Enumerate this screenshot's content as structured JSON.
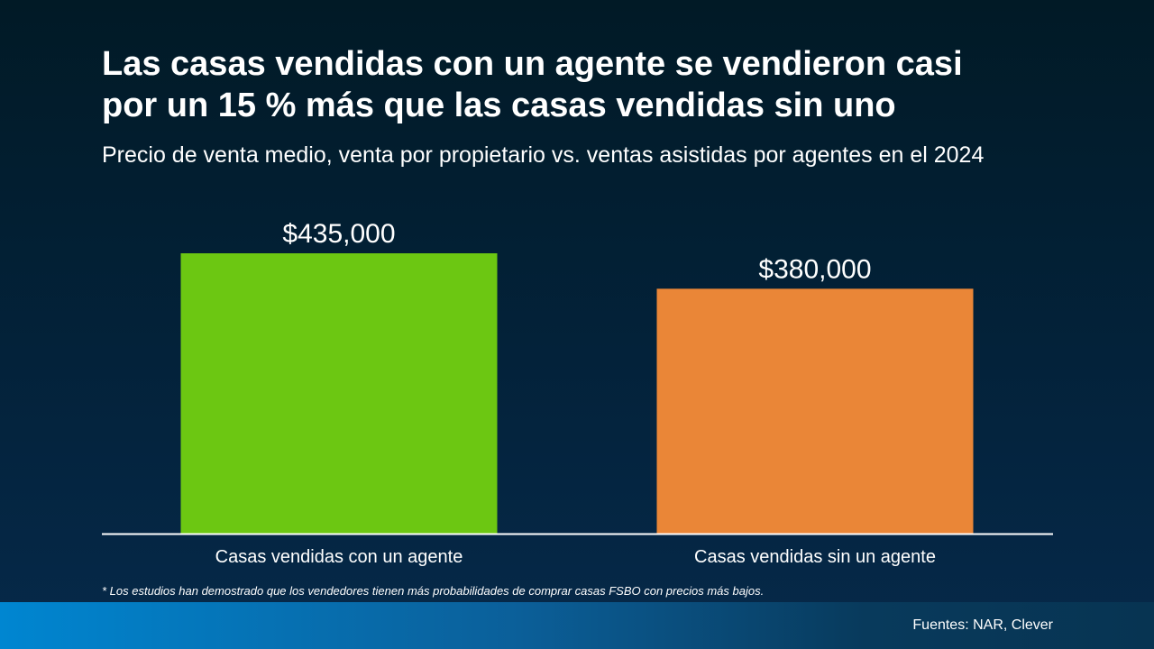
{
  "title_line1": "Las casas vendidas con un agente se vendieron casi",
  "title_line2": "por un 15 % más que las casas vendidas sin uno",
  "subtitle": "Precio de venta medio, venta por propietario vs. ventas asistidas por agentes en el 2024",
  "footnote": "* Los estudios han demostrado que los vendedores tienen más probabilidades de comprar casas FSBO con precios más bajos.",
  "sources": "Fuentes: NAR, Clever",
  "colors": {
    "background": "#02202f",
    "bar_agent": "#6cc712",
    "bar_no_agent": "#ea8637",
    "axis": "#ffffff",
    "text": "#ffffff"
  },
  "chart_data": {
    "type": "bar",
    "categories": [
      "Casas vendidas con un agente",
      "Casas vendidas sin un agente"
    ],
    "values": [
      435000,
      380000
    ],
    "value_labels": [
      "$435,000",
      "$380,000"
    ],
    "title": "Las casas vendidas con un agente se vendieron casi por un 15 % más que las casas vendidas sin uno",
    "subtitle": "Precio de venta medio, venta por propietario vs. ventas asistidas por agentes en el 2024",
    "xlabel": "",
    "ylabel": "",
    "ylim": [
      0,
      435000
    ],
    "grid": false,
    "legend": "none"
  }
}
